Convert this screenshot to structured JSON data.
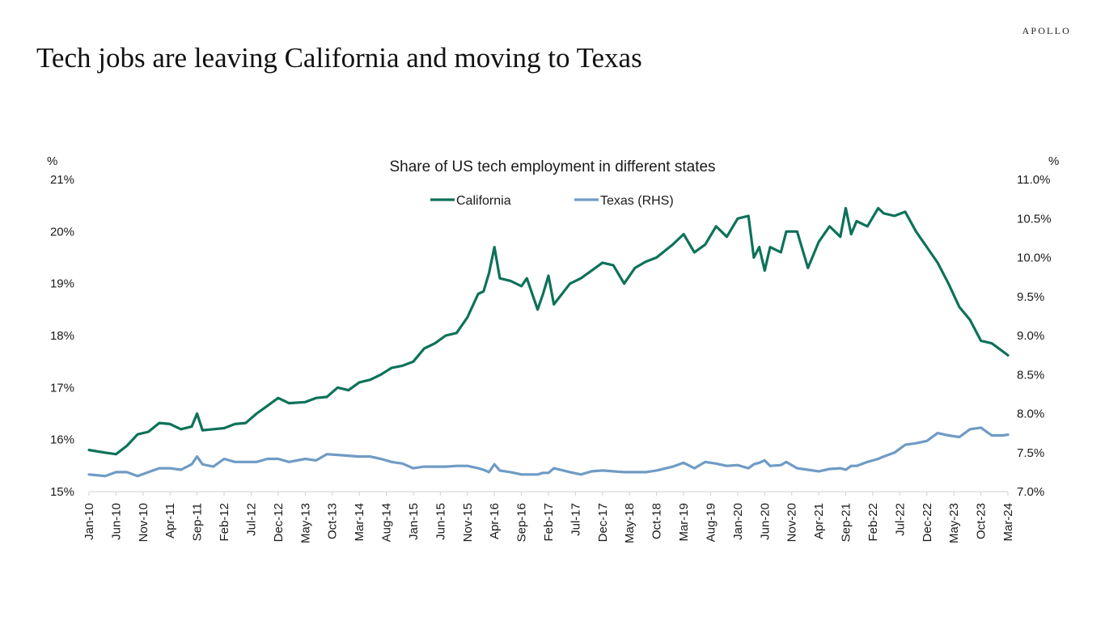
{
  "brand": "APOLLO",
  "headline": "Tech jobs are leaving California and moving to Texas",
  "chart_data": {
    "type": "line",
    "title": "Share of US tech employment in different states",
    "y_left_unit": "%",
    "y_right_unit": "%",
    "y_left_lim": [
      15,
      21
    ],
    "y_right_lim": [
      7.0,
      11.0
    ],
    "y_left_ticks": [
      "15%",
      "16%",
      "17%",
      "18%",
      "19%",
      "20%",
      "21%"
    ],
    "y_right_ticks": [
      "7.0%",
      "7.5%",
      "8.0%",
      "8.5%",
      "9.0%",
      "9.5%",
      "10.0%",
      "10.5%",
      "11.0%"
    ],
    "x_tick_labels": [
      "Jan-10",
      "Jun-10",
      "Nov-10",
      "Apr-11",
      "Sep-11",
      "Feb-12",
      "Jul-12",
      "Dec-12",
      "May-13",
      "Oct-13",
      "Mar-14",
      "Aug-14",
      "Jan-15",
      "Jun-15",
      "Nov-15",
      "Apr-16",
      "Sep-16",
      "Feb-17",
      "Jul-17",
      "Dec-17",
      "May-18",
      "Oct-18",
      "Mar-19",
      "Aug-19",
      "Jan-20",
      "Jun-20",
      "Nov-20",
      "Apr-21",
      "Sep-21",
      "Feb-22",
      "Jul-22",
      "Dec-22",
      "May-23",
      "Oct-23",
      "Mar-24"
    ],
    "x_start": "Jan-10",
    "x_end": "Mar-24",
    "legend_position": "top-center",
    "grid": false,
    "series": [
      {
        "name": "California",
        "axis": "left",
        "color": "#0d7259",
        "points": [
          [
            "Jan-10",
            15.8
          ],
          [
            "Apr-10",
            15.75
          ],
          [
            "Jun-10",
            15.72
          ],
          [
            "Aug-10",
            15.88
          ],
          [
            "Oct-10",
            16.1
          ],
          [
            "Dec-10",
            16.15
          ],
          [
            "Feb-11",
            16.32
          ],
          [
            "Apr-11",
            16.3
          ],
          [
            "Jun-11",
            16.2
          ],
          [
            "Aug-11",
            16.25
          ],
          [
            "Sep-11",
            16.5
          ],
          [
            "Oct-11",
            16.18
          ],
          [
            "Dec-11",
            16.2
          ],
          [
            "Feb-12",
            16.22
          ],
          [
            "Apr-12",
            16.3
          ],
          [
            "Jun-12",
            16.32
          ],
          [
            "Aug-12",
            16.5
          ],
          [
            "Oct-12",
            16.65
          ],
          [
            "Dec-12",
            16.8
          ],
          [
            "Feb-13",
            16.7
          ],
          [
            "May-13",
            16.72
          ],
          [
            "Jul-13",
            16.8
          ],
          [
            "Sep-13",
            16.82
          ],
          [
            "Nov-13",
            17.0
          ],
          [
            "Jan-14",
            16.95
          ],
          [
            "Mar-14",
            17.1
          ],
          [
            "May-14",
            17.15
          ],
          [
            "Jul-14",
            17.25
          ],
          [
            "Sep-14",
            17.38
          ],
          [
            "Nov-14",
            17.42
          ],
          [
            "Jan-15",
            17.5
          ],
          [
            "Mar-15",
            17.75
          ],
          [
            "May-15",
            17.85
          ],
          [
            "Jul-15",
            18.0
          ],
          [
            "Sep-15",
            18.05
          ],
          [
            "Nov-15",
            18.35
          ],
          [
            "Jan-16",
            18.8
          ],
          [
            "Feb-16",
            18.85
          ],
          [
            "Mar-16",
            19.2
          ],
          [
            "Apr-16",
            19.7
          ],
          [
            "May-16",
            19.1
          ],
          [
            "Jul-16",
            19.05
          ],
          [
            "Sep-16",
            18.95
          ],
          [
            "Oct-16",
            19.1
          ],
          [
            "Dec-16",
            18.5
          ],
          [
            "Jan-17",
            18.8
          ],
          [
            "Feb-17",
            19.15
          ],
          [
            "Mar-17",
            18.6
          ],
          [
            "Jun-17",
            19.0
          ],
          [
            "Aug-17",
            19.1
          ],
          [
            "Oct-17",
            19.25
          ],
          [
            "Dec-17",
            19.4
          ],
          [
            "Feb-18",
            19.35
          ],
          [
            "Apr-18",
            19.0
          ],
          [
            "Jun-18",
            19.3
          ],
          [
            "Aug-18",
            19.42
          ],
          [
            "Oct-18",
            19.5
          ],
          [
            "Jan-19",
            19.75
          ],
          [
            "Mar-19",
            19.95
          ],
          [
            "May-19",
            19.6
          ],
          [
            "Jul-19",
            19.75
          ],
          [
            "Sep-19",
            20.1
          ],
          [
            "Nov-19",
            19.9
          ],
          [
            "Jan-20",
            20.25
          ],
          [
            "Mar-20",
            20.3
          ],
          [
            "Apr-20",
            19.5
          ],
          [
            "May-20",
            19.7
          ],
          [
            "Jun-20",
            19.25
          ],
          [
            "Jul-20",
            19.7
          ],
          [
            "Sep-20",
            19.6
          ],
          [
            "Oct-20",
            20.0
          ],
          [
            "Dec-20",
            20.0
          ],
          [
            "Feb-21",
            19.3
          ],
          [
            "Apr-21",
            19.8
          ],
          [
            "Jun-21",
            20.1
          ],
          [
            "Aug-21",
            19.9
          ],
          [
            "Sep-21",
            20.45
          ],
          [
            "Oct-21",
            19.95
          ],
          [
            "Nov-21",
            20.2
          ],
          [
            "Jan-22",
            20.1
          ],
          [
            "Mar-22",
            20.45
          ],
          [
            "Apr-22",
            20.35
          ],
          [
            "Jun-22",
            20.3
          ],
          [
            "Aug-22",
            20.38
          ],
          [
            "Oct-22",
            20.0
          ],
          [
            "Dec-22",
            19.7
          ],
          [
            "Feb-23",
            19.4
          ],
          [
            "Apr-23",
            19.0
          ],
          [
            "Jun-23",
            18.55
          ],
          [
            "Aug-23",
            18.3
          ],
          [
            "Oct-23",
            17.9
          ],
          [
            "Dec-23",
            17.85
          ],
          [
            "Feb-24",
            17.7
          ],
          [
            "Mar-24",
            17.62
          ]
        ]
      },
      {
        "name": "Texas (RHS)",
        "axis": "right",
        "color": "#6f9bc5",
        "points": [
          [
            "Jan-10",
            7.22
          ],
          [
            "Apr-10",
            7.2
          ],
          [
            "Jun-10",
            7.25
          ],
          [
            "Aug-10",
            7.25
          ],
          [
            "Oct-10",
            7.2
          ],
          [
            "Dec-10",
            7.25
          ],
          [
            "Feb-11",
            7.3
          ],
          [
            "Apr-11",
            7.3
          ],
          [
            "Jun-11",
            7.28
          ],
          [
            "Aug-11",
            7.35
          ],
          [
            "Sep-11",
            7.45
          ],
          [
            "Oct-11",
            7.35
          ],
          [
            "Dec-11",
            7.32
          ],
          [
            "Feb-12",
            7.42
          ],
          [
            "Apr-12",
            7.38
          ],
          [
            "Jun-12",
            7.38
          ],
          [
            "Aug-12",
            7.38
          ],
          [
            "Oct-12",
            7.42
          ],
          [
            "Dec-12",
            7.42
          ],
          [
            "Feb-13",
            7.38
          ],
          [
            "May-13",
            7.42
          ],
          [
            "Jul-13",
            7.4
          ],
          [
            "Sep-13",
            7.48
          ],
          [
            "Nov-13",
            7.47
          ],
          [
            "Jan-14",
            7.46
          ],
          [
            "Mar-14",
            7.45
          ],
          [
            "May-14",
            7.45
          ],
          [
            "Jul-14",
            7.42
          ],
          [
            "Sep-14",
            7.38
          ],
          [
            "Nov-14",
            7.36
          ],
          [
            "Jan-15",
            7.3
          ],
          [
            "Mar-15",
            7.32
          ],
          [
            "May-15",
            7.32
          ],
          [
            "Jul-15",
            7.32
          ],
          [
            "Sep-15",
            7.33
          ],
          [
            "Nov-15",
            7.33
          ],
          [
            "Jan-16",
            7.3
          ],
          [
            "Feb-16",
            7.28
          ],
          [
            "Mar-16",
            7.25
          ],
          [
            "Apr-16",
            7.35
          ],
          [
            "May-16",
            7.27
          ],
          [
            "Jul-16",
            7.25
          ],
          [
            "Sep-16",
            7.22
          ],
          [
            "Oct-16",
            7.22
          ],
          [
            "Dec-16",
            7.22
          ],
          [
            "Jan-17",
            7.24
          ],
          [
            "Feb-17",
            7.24
          ],
          [
            "Mar-17",
            7.3
          ],
          [
            "Jun-17",
            7.25
          ],
          [
            "Aug-17",
            7.22
          ],
          [
            "Oct-17",
            7.26
          ],
          [
            "Dec-17",
            7.27
          ],
          [
            "Feb-18",
            7.26
          ],
          [
            "Apr-18",
            7.25
          ],
          [
            "Jun-18",
            7.25
          ],
          [
            "Aug-18",
            7.25
          ],
          [
            "Oct-18",
            7.27
          ],
          [
            "Jan-19",
            7.32
          ],
          [
            "Mar-19",
            7.37
          ],
          [
            "May-19",
            7.3
          ],
          [
            "Jul-19",
            7.38
          ],
          [
            "Sep-19",
            7.36
          ],
          [
            "Nov-19",
            7.33
          ],
          [
            "Jan-20",
            7.34
          ],
          [
            "Mar-20",
            7.3
          ],
          [
            "Apr-20",
            7.35
          ],
          [
            "May-20",
            7.37
          ],
          [
            "Jun-20",
            7.4
          ],
          [
            "Jul-20",
            7.33
          ],
          [
            "Sep-20",
            7.34
          ],
          [
            "Oct-20",
            7.38
          ],
          [
            "Dec-20",
            7.3
          ],
          [
            "Feb-21",
            7.28
          ],
          [
            "Apr-21",
            7.26
          ],
          [
            "Jun-21",
            7.29
          ],
          [
            "Aug-21",
            7.3
          ],
          [
            "Sep-21",
            7.28
          ],
          [
            "Oct-21",
            7.33
          ],
          [
            "Nov-21",
            7.33
          ],
          [
            "Jan-22",
            7.38
          ],
          [
            "Mar-22",
            7.42
          ],
          [
            "Apr-22",
            7.45
          ],
          [
            "Jun-22",
            7.5
          ],
          [
            "Aug-22",
            7.6
          ],
          [
            "Oct-22",
            7.62
          ],
          [
            "Dec-22",
            7.65
          ],
          [
            "Feb-23",
            7.75
          ],
          [
            "Apr-23",
            7.72
          ],
          [
            "Jun-23",
            7.7
          ],
          [
            "Aug-23",
            7.8
          ],
          [
            "Oct-23",
            7.82
          ],
          [
            "Dec-23",
            7.72
          ],
          [
            "Feb-24",
            7.72
          ],
          [
            "Mar-24",
            7.73
          ]
        ]
      }
    ]
  }
}
